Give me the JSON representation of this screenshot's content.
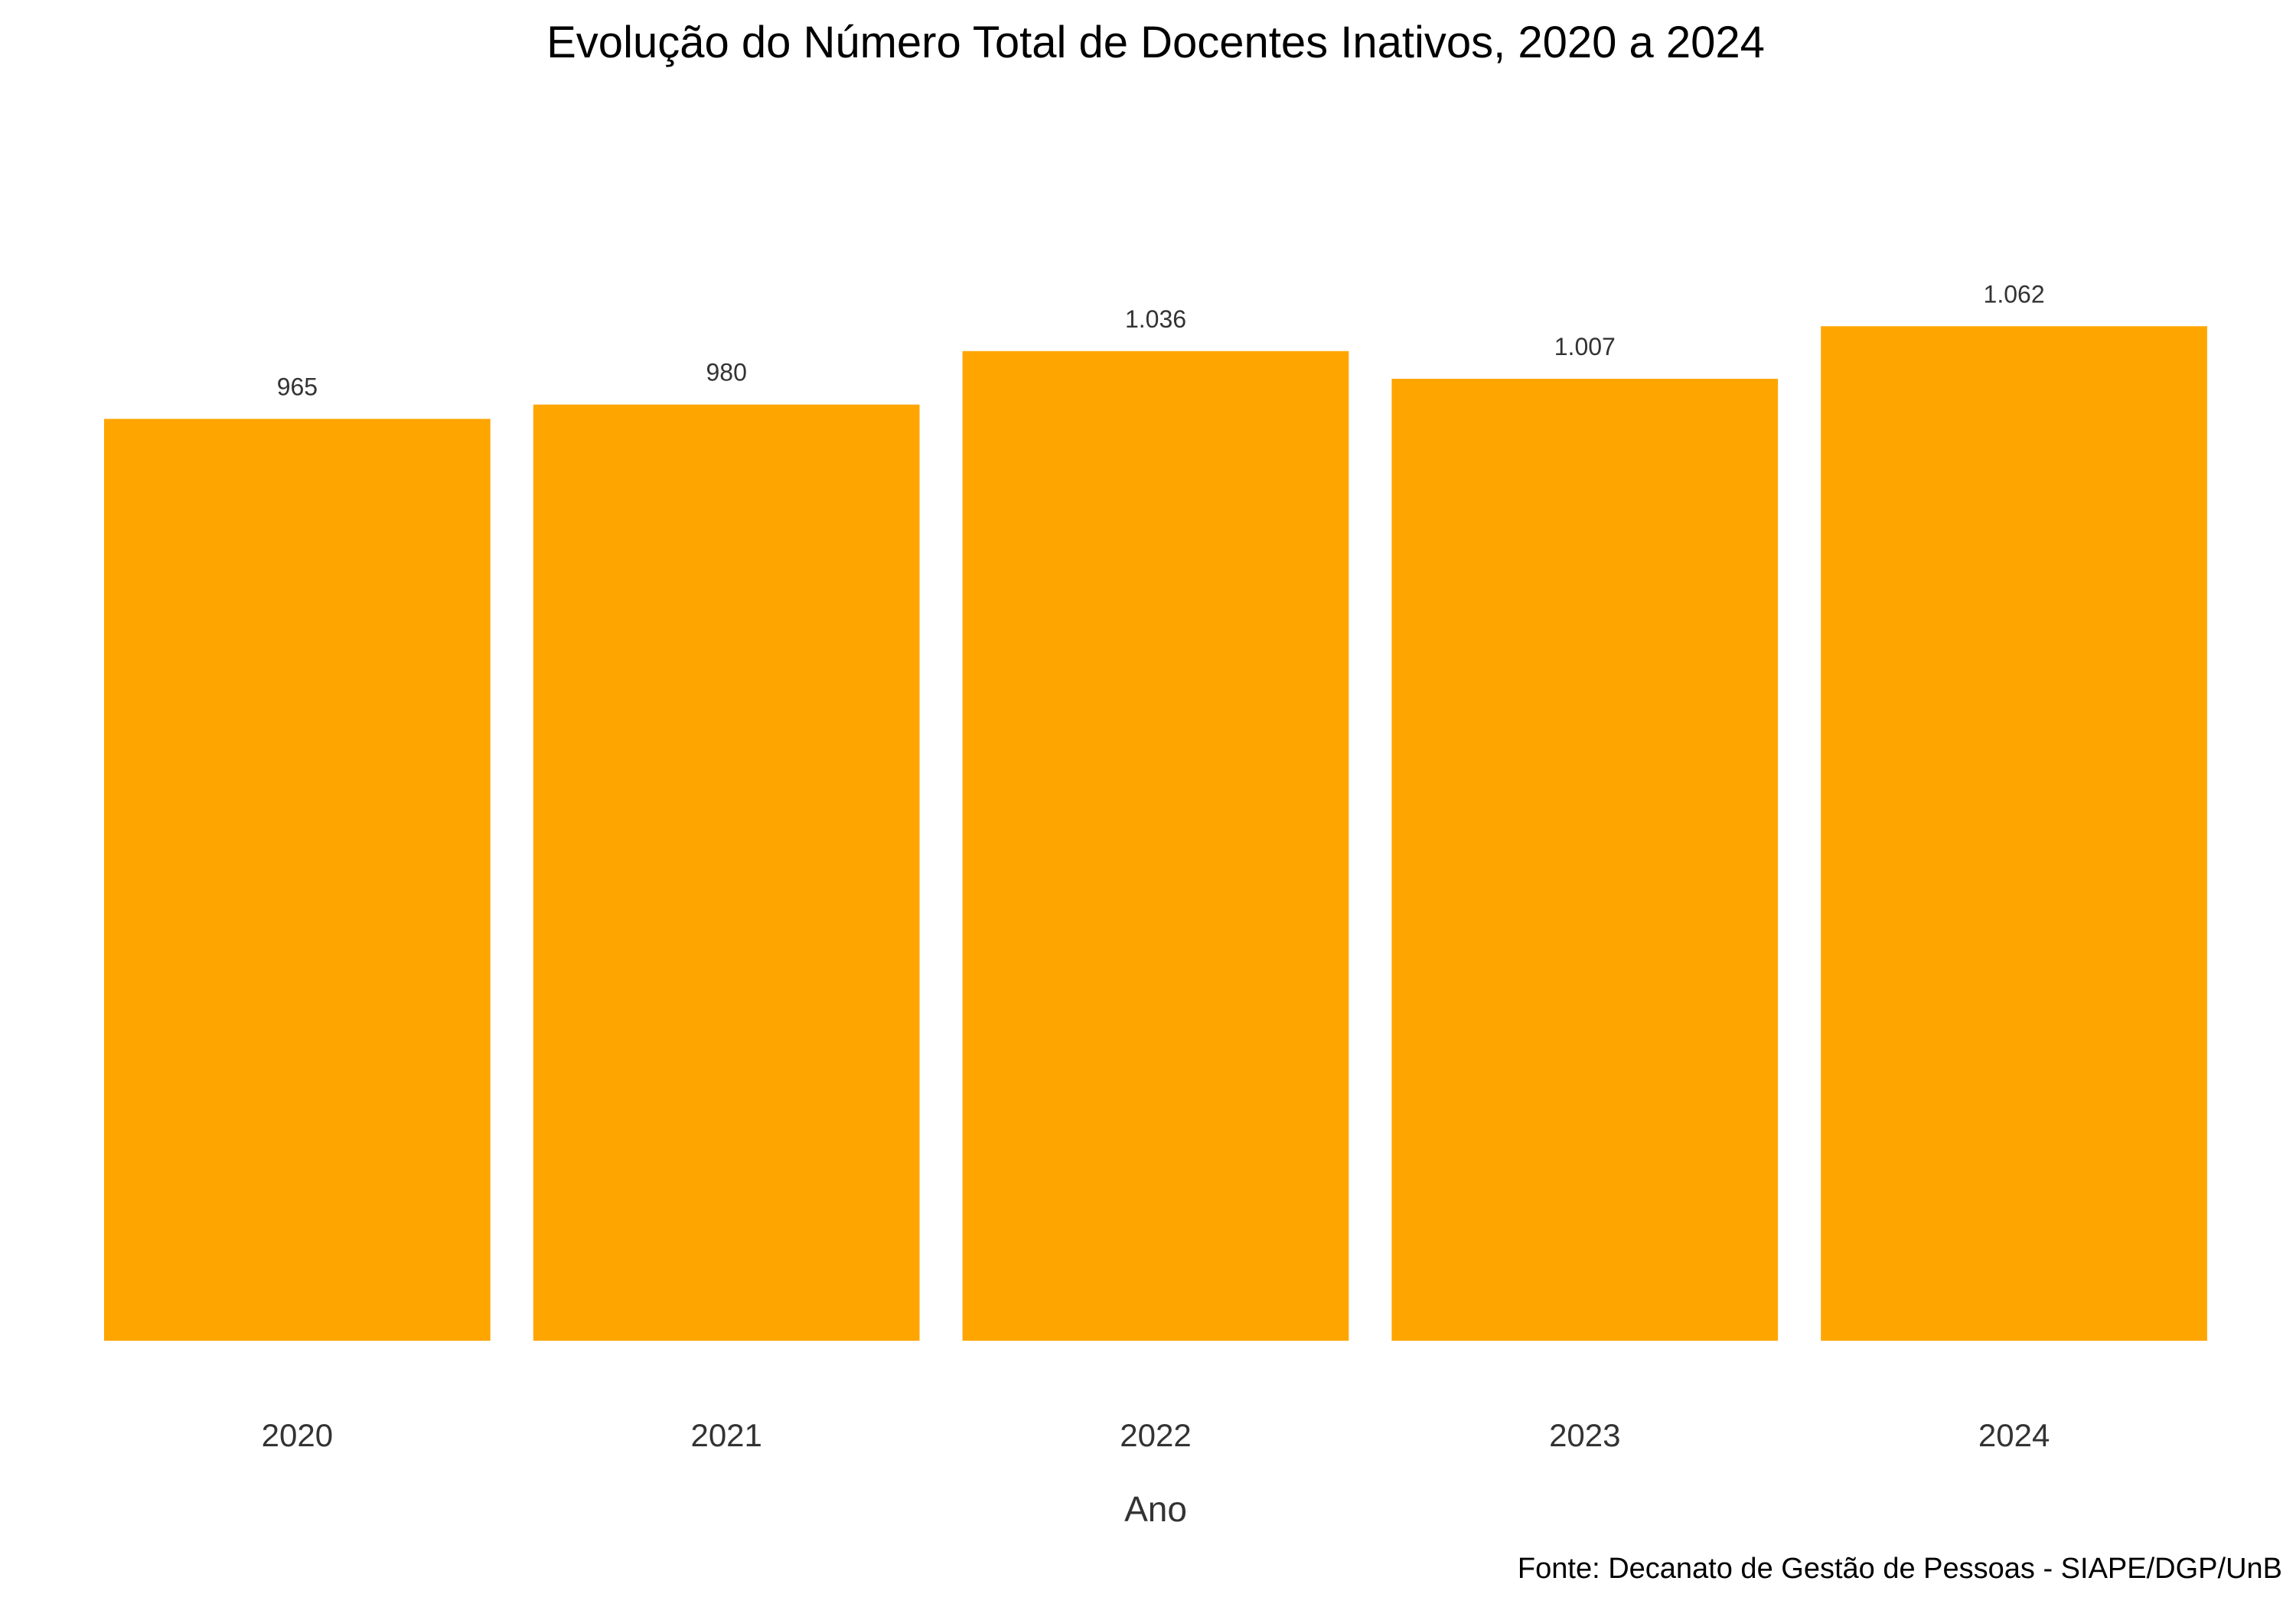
{
  "chart_data": {
    "type": "bar",
    "title": "Evolução do Número Total de Docentes Inativos, 2020 a 2024",
    "xlabel": "Ano",
    "ylabel": "",
    "categories": [
      "2020",
      "2021",
      "2022",
      "2023",
      "2024"
    ],
    "values": [
      965,
      980,
      1036,
      1007,
      1062
    ],
    "value_labels": [
      "965",
      "980",
      "1.036",
      "1.007",
      "1.062"
    ],
    "ylim": [
      0,
      1300
    ],
    "grid": false,
    "legend": "none",
    "caption": "Fonte: Decanato de Gestão de Pessoas - SIAPE/DGP/UnB",
    "colors": {
      "bar": "#FFA500",
      "text": "#333333",
      "background": "#FFFFFF"
    }
  }
}
